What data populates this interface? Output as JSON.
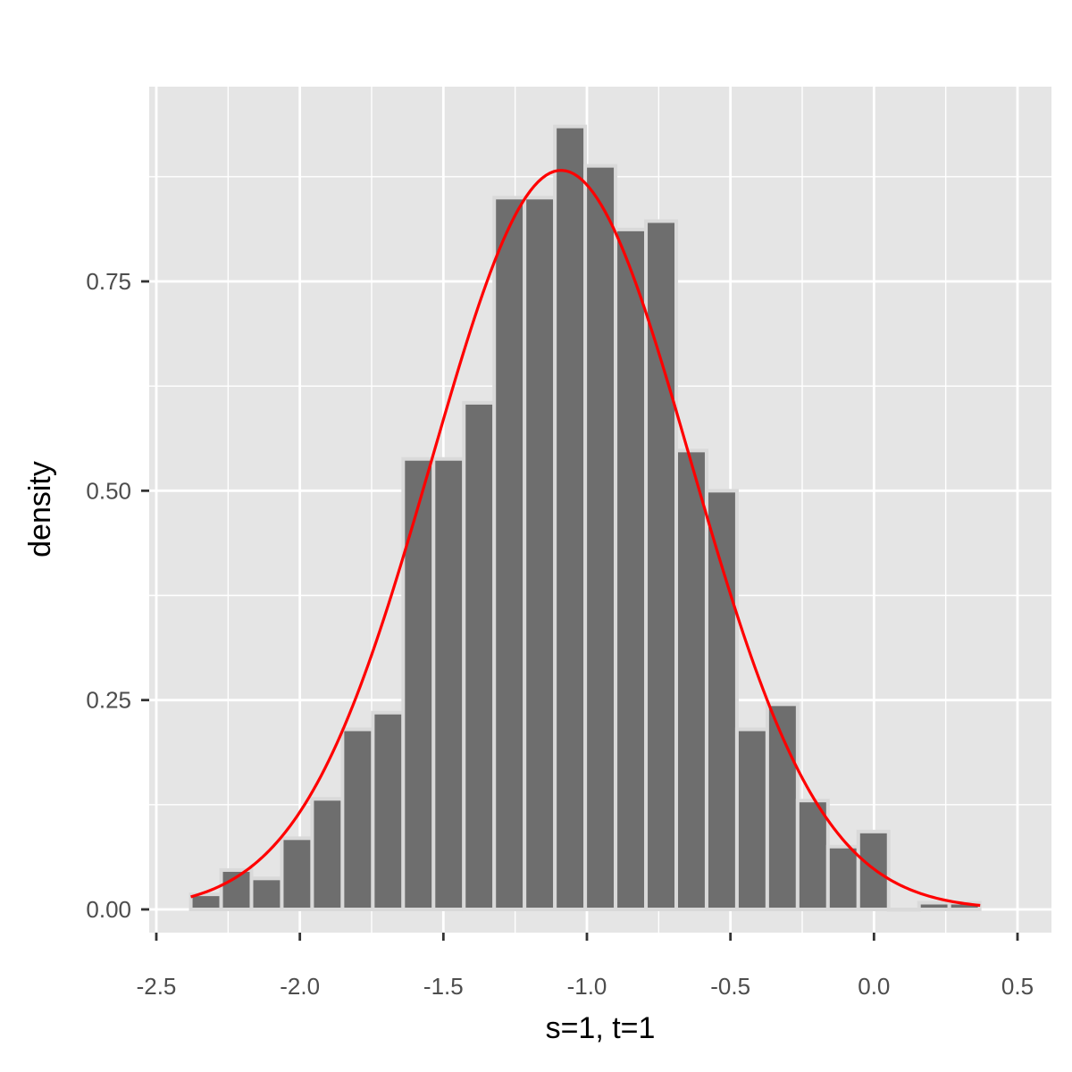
{
  "chart_data": {
    "type": "bar",
    "title": "",
    "xlabel": "s=1, t=1",
    "ylabel": "density",
    "xlim": [
      -2.5,
      0.5
    ],
    "ylim": [
      0,
      0.95
    ],
    "grid": true,
    "x_ticks": [
      -2.5,
      -2.0,
      -1.5,
      -1.0,
      -0.5,
      0.0,
      0.5
    ],
    "x_tick_labels": [
      "-2.5",
      "-2.0",
      "-1.5",
      "-1.0",
      "-0.5",
      "0.0",
      "0.5"
    ],
    "y_ticks": [
      0,
      0.25,
      0.5,
      0.75
    ],
    "y_tick_labels": [
      "0.00",
      "0.25",
      "0.50",
      "0.75"
    ],
    "bin_width": 0.1057,
    "bin_starts": [
      -2.38,
      -2.2743,
      -2.1686,
      -2.0629,
      -1.9572,
      -1.8515,
      -1.7458,
      -1.6401,
      -1.5344,
      -1.4287,
      -1.323,
      -1.2173,
      -1.1116,
      -1.0059,
      -0.9002,
      -0.7945,
      -0.6888,
      -0.5831,
      -0.4774,
      -0.3717,
      -0.266,
      -0.1603,
      -0.0546,
      0.0511,
      0.1568,
      0.2625
    ],
    "values": [
      0.018,
      0.047,
      0.037,
      0.085,
      0.132,
      0.215,
      0.235,
      0.538,
      0.538,
      0.605,
      0.85,
      0.85,
      0.935,
      0.888,
      0.812,
      0.822,
      0.548,
      0.5,
      0.215,
      0.245,
      0.13,
      0.075,
      0.093,
      0.0,
      0.008,
      0.008
    ],
    "curve": {
      "type": "normal-density",
      "mean": -1.09,
      "sd": 0.452,
      "x_range": [
        -2.38,
        0.37
      ],
      "color": "#ff0000"
    },
    "bar_fill": "#6e6e6e",
    "bar_outline": "#d9d9d9",
    "panel_background": "#e5e5e5",
    "grid_color": "#ffffff"
  }
}
